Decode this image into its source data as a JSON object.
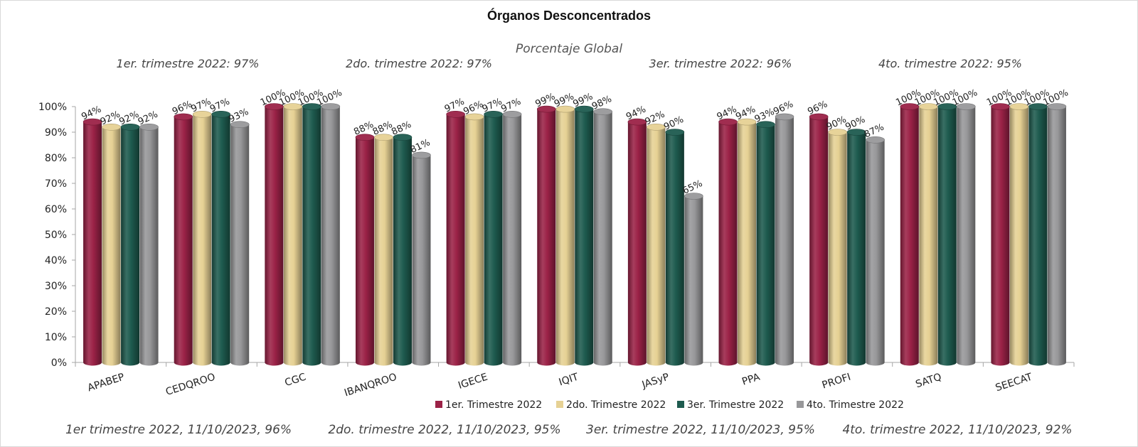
{
  "chart_data": {
    "type": "bar",
    "title": "Órganos Desconcentrados",
    "subtitle": "Porcentaje Global",
    "quarter_notes": [
      "1er. trimestre 2022: 97%",
      "2do. trimestre 2022: 97%",
      "3er. trimestre 2022: 96%",
      "4to. trimestre 2022: 95%"
    ],
    "footer_notes": [
      "1er trimestre  2022,  11/10/2023, 96%",
      "2do. trimestre 2022, 11/10/2023, 95%",
      "3er. trimestre 2022, 11/10/2023, 95%",
      "4to. trimestre 2022, 11/10/2023, 92%"
    ],
    "categories": [
      "APABEP",
      "CEDQROO",
      "CGC",
      "IBANQROO",
      "IGECE",
      "IQIT",
      "JASyP",
      "PPA",
      "PROFI",
      "SATQ",
      "SEECAT"
    ],
    "series": [
      {
        "name": "1er. Trimestre 2022",
        "color": "#9b2247",
        "values": [
          94,
          96,
          100,
          88,
          97,
          99,
          94,
          94,
          96,
          100,
          100
        ]
      },
      {
        "name": "2do. Trimestre 2022",
        "color": "#e6d194",
        "values": [
          92,
          97,
          100,
          88,
          96,
          99,
          92,
          94,
          90,
          100,
          100
        ]
      },
      {
        "name": "3er. Trimestre 2022",
        "color": "#1e5b4f",
        "values": [
          92,
          97,
          100,
          88,
          97,
          99,
          90,
          93,
          90,
          100,
          100
        ]
      },
      {
        "name": "4to. Trimestre 2022",
        "color": "#98989a",
        "values": [
          92,
          93,
          100,
          81,
          97,
          98,
          65,
          96,
          87,
          100,
          100
        ]
      }
    ],
    "value_suffix": "%",
    "ylim": [
      0,
      100
    ],
    "yticks": [
      "0%",
      "10%",
      "20%",
      "30%",
      "40%",
      "50%",
      "60%",
      "70%",
      "80%",
      "90%",
      "100%"
    ],
    "grid": false,
    "legend_position": "bottom"
  }
}
